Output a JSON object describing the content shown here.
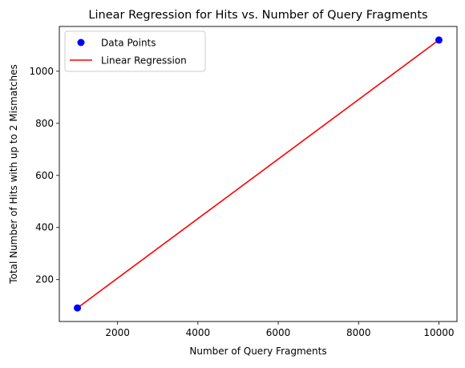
{
  "chart_data": {
    "type": "scatter",
    "title": "Linear Regression for Hits vs. Number of Query Fragments",
    "xlabel": "Number of Query Fragments",
    "ylabel": "Total Number of Hits with up to 2 Mismatches",
    "xlim": [
      550,
      10450
    ],
    "ylim": [
      39,
      1172
    ],
    "xticks": [
      2000,
      4000,
      6000,
      8000,
      10000
    ],
    "yticks": [
      200,
      400,
      600,
      800,
      1000
    ],
    "grid": false,
    "legend_position": "top-left",
    "series": [
      {
        "name": "Data Points",
        "kind": "scatter",
        "color": "#0000ff",
        "x": [
          1000,
          10000
        ],
        "y": [
          91,
          1120
        ]
      },
      {
        "name": "Linear Regression",
        "kind": "line",
        "color": "#ff0000",
        "x": [
          1000,
          10000
        ],
        "y": [
          91,
          1120
        ]
      }
    ]
  }
}
